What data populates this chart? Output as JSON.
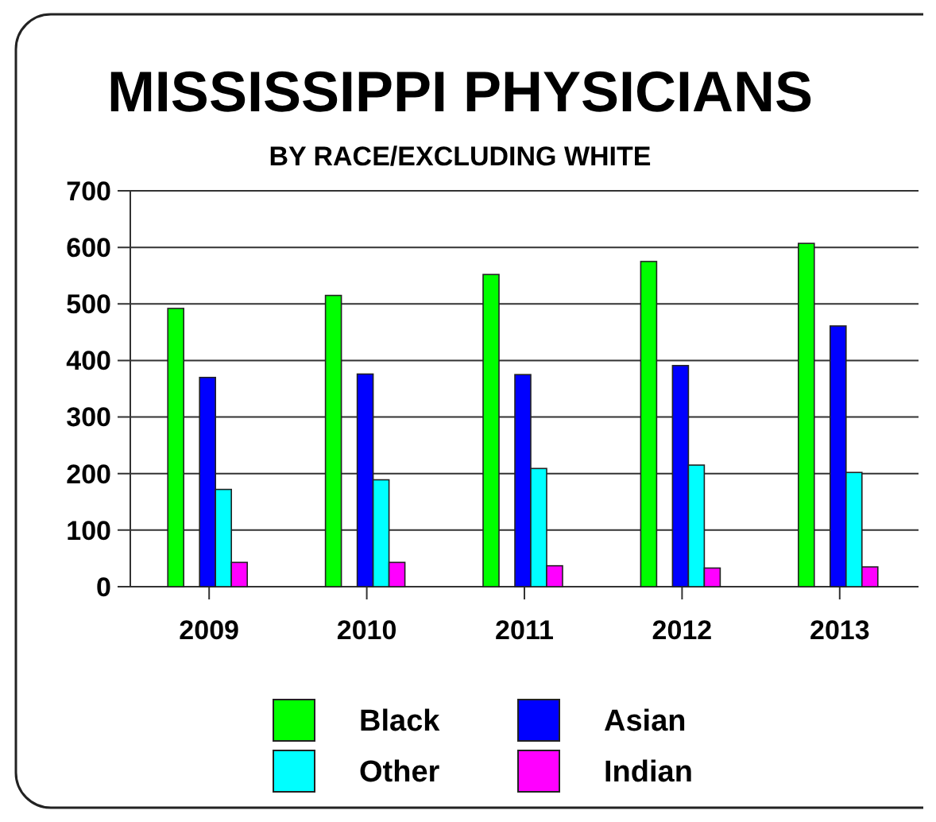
{
  "chart_data": {
    "type": "bar",
    "title": "MISSISSIPPI PHYSICIANS",
    "subtitle": "BY RACE/EXCLUDING WHITE",
    "categories": [
      "2009",
      "2010",
      "2011",
      "2012",
      "2013"
    ],
    "series": [
      {
        "name": "Black",
        "color": "#00ff00",
        "values": [
          492,
          515,
          552,
          575,
          607
        ]
      },
      {
        "name": "Asian",
        "color": "#0000ff",
        "values": [
          370,
          376,
          375,
          391,
          461
        ]
      },
      {
        "name": "Other",
        "color": "#00ffff",
        "values": [
          172,
          189,
          209,
          215,
          202
        ]
      },
      {
        "name": "Indian",
        "color": "#ff00ff",
        "values": [
          43,
          43,
          37,
          33,
          35
        ]
      }
    ],
    "ylim": [
      0,
      700
    ],
    "yticks": [
      0,
      100,
      200,
      300,
      400,
      500,
      600,
      700
    ],
    "grid": "y",
    "legend": "bottom"
  }
}
